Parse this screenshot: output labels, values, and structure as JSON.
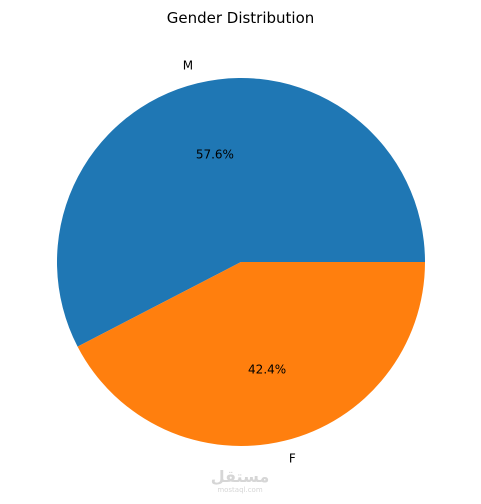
{
  "chart_data": {
    "type": "pie",
    "title": "Gender Distribution",
    "categories": [
      "M",
      "F"
    ],
    "values": [
      57.6,
      42.4
    ],
    "pct_labels": [
      "57.6%",
      "42.4%"
    ],
    "colors": [
      "#1f77b4",
      "#ff7f0e"
    ],
    "start_angle_deg": 0,
    "direction": "counterclockwise"
  },
  "watermark": {
    "text": "مستقل",
    "subtext": "mostaql.com"
  }
}
